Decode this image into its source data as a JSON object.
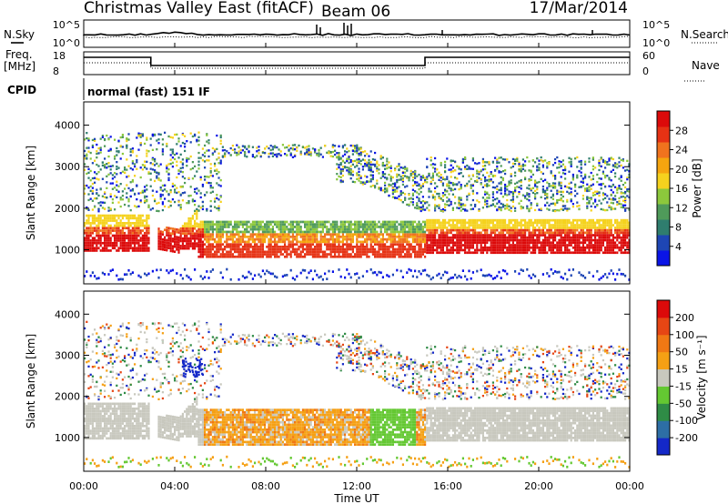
{
  "header": {
    "title_left": "Christmas Valley East (fitACF)",
    "title_center": "Beam 06",
    "title_right": "17/Mar/2014"
  },
  "noise_panel": {
    "left_label": "N.Sky",
    "right_label": "N.Search",
    "ytick_top": "10^5",
    "ytick_bottom": "10^0"
  },
  "freq_panel": {
    "left_label_line1": "Freq.",
    "left_label_line2": "[MHz]",
    "right_label": "Nave",
    "left_ticks": [
      "18",
      "8"
    ],
    "right_ticks": [
      "60",
      "0"
    ]
  },
  "cpid": {
    "label": "CPID",
    "text": "normal (fast) 151 IF"
  },
  "chart_data": [
    {
      "type": "heatmap",
      "name": "power",
      "ylabel": "Slant Range [km]",
      "ylim": [
        180,
        4560
      ],
      "yticks": [
        1000,
        2000,
        3000,
        4000
      ],
      "colorbar": {
        "label": "Power [dB]",
        "ticks": [
          "4",
          "8",
          "12",
          "16",
          "20",
          "24",
          "28"
        ],
        "colors": [
          "#0a14e6",
          "#1e46b4",
          "#2f7d6e",
          "#4f9a5a",
          "#8cc83c",
          "#f5d21e",
          "#f5a50f",
          "#f0731e",
          "#e63214",
          "#dc0a0a"
        ]
      }
    },
    {
      "type": "heatmap",
      "name": "velocity",
      "ylabel": "Slant Range [km]",
      "ylim": [
        180,
        4560
      ],
      "yticks": [
        1000,
        2000,
        3000,
        4000
      ],
      "colorbar": {
        "label": "Velocity [m s⁻¹]",
        "ticks": [
          "200",
          "100",
          "50",
          "15",
          "-15",
          "-50",
          "-100",
          "-200"
        ],
        "colors": [
          "#1428c8",
          "#2d6ea5",
          "#2f8c46",
          "#64c832",
          "#c8c8be",
          "#f5a014",
          "#f07814",
          "#e64614",
          "#dc0a0a"
        ]
      }
    }
  ],
  "xaxis": {
    "label": "Time UT",
    "ticks": [
      "00:00",
      "04:00",
      "08:00",
      "12:00",
      "16:00",
      "20:00",
      "00:00"
    ]
  }
}
